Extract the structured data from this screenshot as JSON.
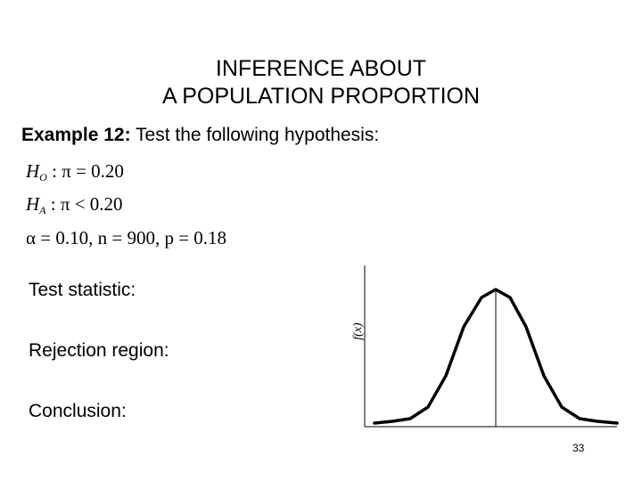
{
  "slide": {
    "title_line1": "INFERENCE ABOUT",
    "title_line2": "A POPULATION PROPORTION",
    "example_label": "Example 12:",
    "example_text": " Test the following hypothesis:",
    "hypotheses": {
      "null_H": "H",
      "null_sub": "O",
      "null_rest": " : π = 0.20",
      "alt_H": "H",
      "alt_sub": "A",
      "alt_rest": " : π < 0.20",
      "params": "α = 0.10, n = 900, p = 0.18"
    },
    "test_statistic_label": "Test statistic:",
    "rejection_region_label": "Rejection region:",
    "conclusion_label": "Conclusion:",
    "page_number": "33"
  },
  "figure": {
    "ylabel": "f(x)",
    "curve": "normal density curve",
    "center_line": true
  }
}
